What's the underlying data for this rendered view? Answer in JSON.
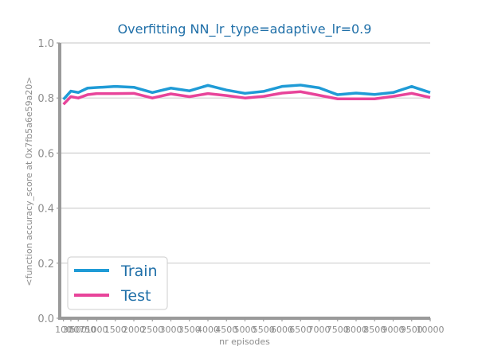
{
  "chart_data": {
    "type": "line",
    "title": "Overfitting NN_lr_type=adaptive_lr=0.9",
    "xlabel": "nr episodes",
    "ylabel": "<function accuracy_score at 0x7fb5a6e59a20>",
    "x": [
      100,
      300,
      500,
      750,
      1000,
      1500,
      2000,
      2500,
      3000,
      3500,
      4000,
      4500,
      5000,
      5500,
      6000,
      6500,
      7000,
      7500,
      8000,
      8500,
      9000,
      9500,
      10000
    ],
    "xtick_labels": [
      "100",
      "300",
      "500",
      "750",
      "1000",
      "1500",
      "2000",
      "2500",
      "3000",
      "3500",
      "4000",
      "4500",
      "5000",
      "5500",
      "6000",
      "6500",
      "7000",
      "7500",
      "8000",
      "8500",
      "9000",
      "9500",
      "10000"
    ],
    "ylim": [
      0.0,
      1.0
    ],
    "yticks": [
      "0.0",
      "0.2",
      "0.4",
      "0.6",
      "0.8",
      "1.0"
    ],
    "ytick_values": [
      0.0,
      0.2,
      0.4,
      0.6,
      0.8,
      1.0
    ],
    "grid": "horizontal",
    "legend_position": "lower-left",
    "series": [
      {
        "name": "Train",
        "color": "#1f9bd6",
        "values": [
          0.795,
          0.825,
          0.82,
          0.836,
          0.838,
          0.842,
          0.839,
          0.82,
          0.836,
          0.826,
          0.846,
          0.829,
          0.817,
          0.824,
          0.842,
          0.847,
          0.837,
          0.812,
          0.818,
          0.813,
          0.82,
          0.842,
          0.82
        ]
      },
      {
        "name": "Test",
        "color": "#e8449a",
        "values": [
          0.777,
          0.805,
          0.8,
          0.812,
          0.816,
          0.816,
          0.817,
          0.8,
          0.815,
          0.805,
          0.816,
          0.809,
          0.8,
          0.806,
          0.818,
          0.823,
          0.81,
          0.797,
          0.797,
          0.797,
          0.806,
          0.817,
          0.802
        ]
      }
    ]
  }
}
